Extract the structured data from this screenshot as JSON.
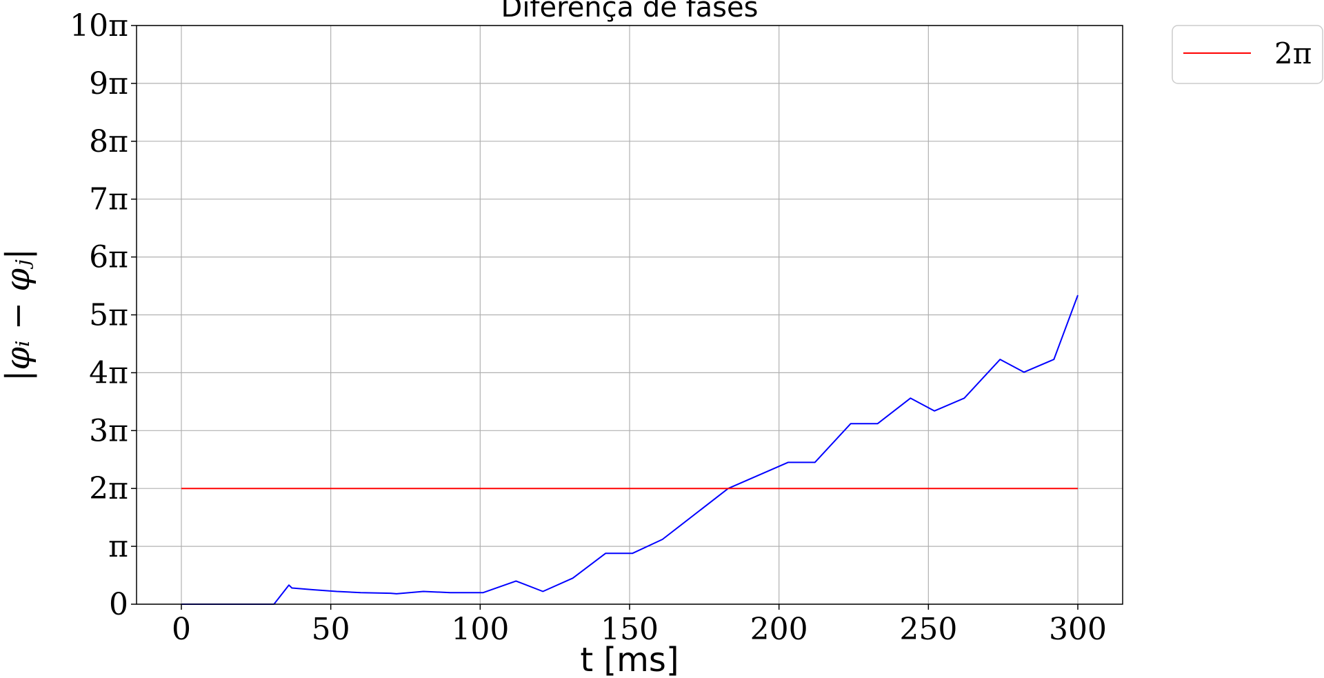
{
  "chart_data": {
    "type": "line",
    "title": "Diferença de fases",
    "xlabel": "t [ms]",
    "ylabel": "|φᵢ − φⱼ|",
    "xlim": [
      -15,
      315
    ],
    "ylim": [
      0,
      10
    ],
    "y_unit": "π",
    "x_ticks": [
      0,
      50,
      100,
      150,
      200,
      250,
      300
    ],
    "x_tick_labels": [
      "0",
      "50",
      "100",
      "150",
      "200",
      "250",
      "300"
    ],
    "y_ticks": [
      0,
      1,
      2,
      3,
      4,
      5,
      6,
      7,
      8,
      9,
      10
    ],
    "y_tick_labels": [
      "0",
      "π",
      "2π",
      "3π",
      "4π",
      "5π",
      "6π",
      "7π",
      "8π",
      "9π",
      "10π"
    ],
    "grid": true,
    "legend_position": "outside-top-right",
    "series": [
      {
        "name": "",
        "color": "#0000ff",
        "x": [
          0,
          31,
          36,
          37,
          44,
          52,
          60,
          70,
          72,
          81,
          90,
          101,
          112,
          121,
          131,
          142,
          151,
          161,
          183,
          203,
          212,
          224,
          233,
          244,
          252,
          262,
          274,
          282,
          292,
          300
        ],
        "y": [
          0,
          0,
          0.33,
          0.28,
          0.25,
          0.22,
          0.2,
          0.19,
          0.18,
          0.22,
          0.2,
          0.2,
          0.4,
          0.22,
          0.45,
          0.88,
          0.88,
          1.12,
          2.0,
          2.45,
          2.45,
          3.12,
          3.12,
          3.56,
          3.34,
          3.56,
          4.23,
          4.01,
          4.23,
          5.34
        ]
      },
      {
        "name": "2π",
        "color": "#ff0000",
        "x": [
          0,
          300
        ],
        "y": [
          2,
          2
        ]
      }
    ]
  }
}
